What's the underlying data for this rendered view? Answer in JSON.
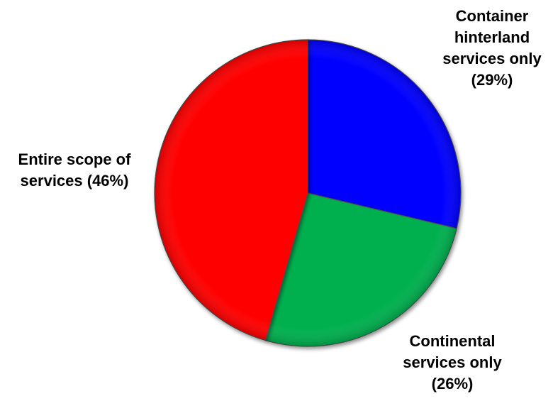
{
  "chart_data": {
    "type": "pie",
    "title": "",
    "slices": [
      {
        "label_lines": [
          "Container",
          "hinterland",
          "services only",
          "(29%)"
        ],
        "value": 29,
        "color": "#0000ff"
      },
      {
        "label_lines": [
          "Continental",
          "services only",
          "(26%)"
        ],
        "value": 26,
        "color": "#00b050"
      },
      {
        "label_lines": [
          "Entire scope of",
          "services (46%)"
        ],
        "value": 46,
        "color": "#ff0000"
      }
    ],
    "start": "12 o'clock",
    "direction": "clockwise",
    "legend": "none"
  }
}
